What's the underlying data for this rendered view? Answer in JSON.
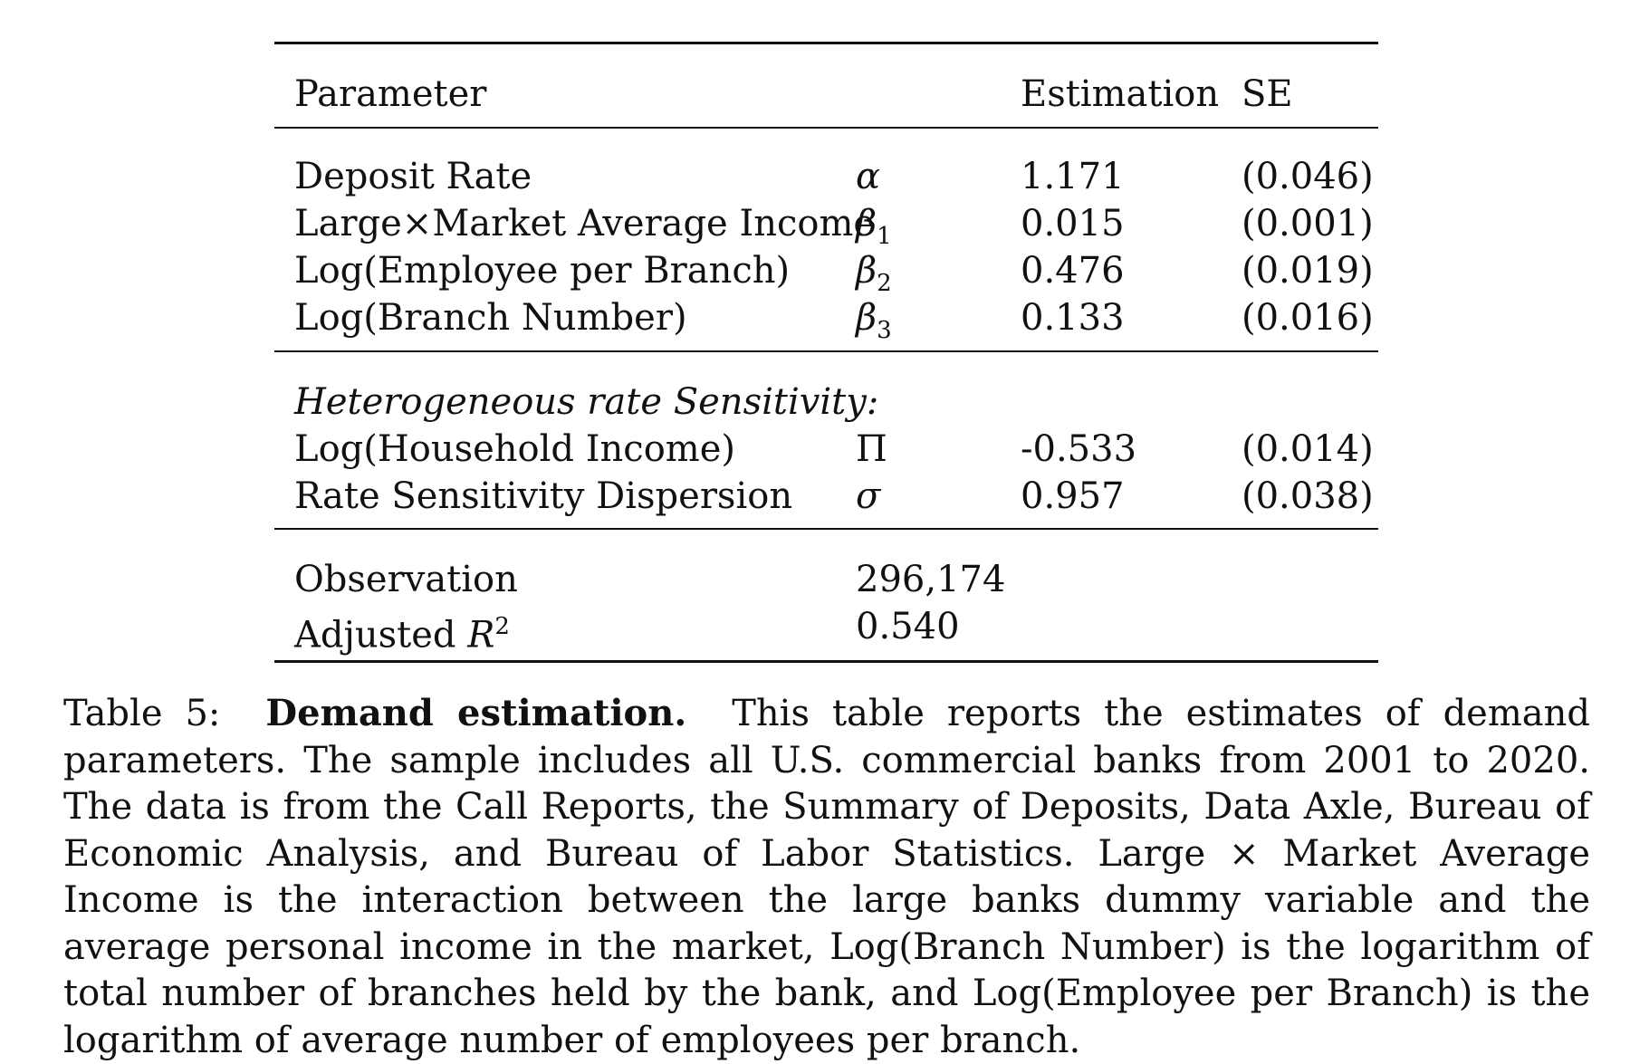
{
  "table": {
    "header": {
      "parameter": "Parameter",
      "estimation": "Estimation",
      "se": "SE"
    },
    "main_rows": [
      {
        "name": "Deposit Rate",
        "symbol": "α",
        "symbol_sub": "",
        "estimate": "1.171",
        "se": "(0.046)"
      },
      {
        "name": "Large×Market Average Income",
        "symbol": "β",
        "symbol_sub": "1",
        "estimate": "0.015",
        "se": "(0.001)"
      },
      {
        "name": "Log(Employee per Branch)",
        "symbol": "β",
        "symbol_sub": "2",
        "estimate": "0.476",
        "se": "(0.019)"
      },
      {
        "name": "Log(Branch Number)",
        "symbol": "β",
        "symbol_sub": "3",
        "estimate": "0.133",
        "se": "(0.016)"
      }
    ],
    "section_title": "Heterogeneous rate Sensitivity:",
    "section_rows": [
      {
        "name": "Log(Household Income)",
        "symbol": "Π",
        "estimate": "-0.533",
        "se": "(0.014)"
      },
      {
        "name": "Rate Sensitivity Dispersion",
        "symbol": "σ",
        "estimate": "0.957",
        "se": "(0.038)"
      }
    ],
    "stats": {
      "observation_label": "Observation",
      "observation_value": "296,174",
      "r2_label_prefix": "Adjusted ",
      "r2_symbol": "R",
      "r2_sup": "2",
      "r2_value": "0.540"
    }
  },
  "caption": {
    "label": "Table 5:",
    "title": "Demand estimation.",
    "text": "This table reports the estimates of demand parameters. The sample includes all U.S. commercial banks from 2001 to 2020. The data is from the Call Reports, the Summary of Deposits, Data Axle, Bureau of Economic Analysis, and Bureau of Labor Statistics. Large × Market Average Income is the interaction between the large banks dummy variable and the average personal income in the market, Log(Branch Number) is the logarithm of total number of branches held by the bank, and Log(Employee per Branch) is the logarithm of average number of employees per branch."
  }
}
